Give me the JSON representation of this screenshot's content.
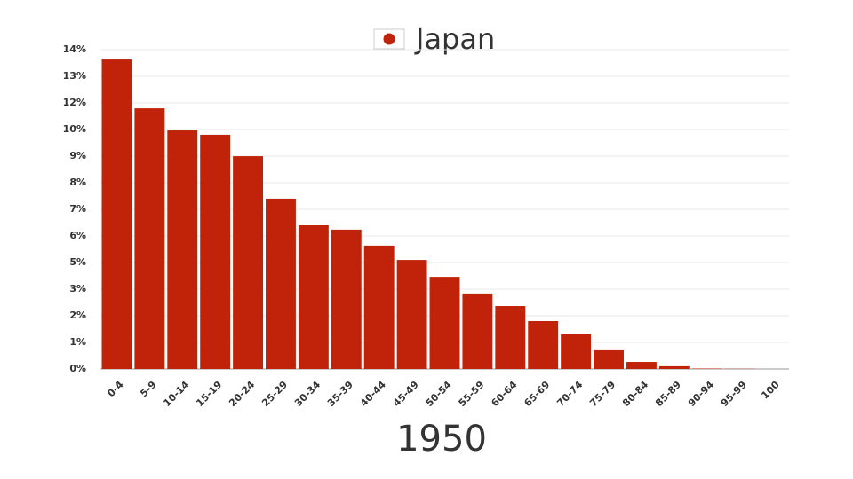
{
  "chart_data": {
    "type": "bar",
    "title": "Japan",
    "subtitle": "1950",
    "categories": [
      "0-4",
      "5-9",
      "10-14",
      "15-19",
      "20-24",
      "25-29",
      "30-34",
      "35-39",
      "40-44",
      "45-49",
      "50-54",
      "55-59",
      "60-64",
      "65-69",
      "70-74",
      "75-79",
      "80-84",
      "85-89",
      "90-94",
      "95-99",
      "100"
    ],
    "values": [
      13.57,
      11.43,
      10.46,
      10.27,
      9.33,
      7.47,
      6.3,
      6.11,
      5.41,
      4.78,
      4.04,
      3.31,
      2.76,
      2.1,
      1.52,
      0.82,
      0.31,
      0.12,
      0.02,
      0.01,
      0
    ],
    "color": "#c1230a",
    "ylim": [
      0,
      14
    ],
    "yticks": [
      {
        "value": 0,
        "label": "0%"
      },
      {
        "value": 1.1667,
        "label": "1%"
      },
      {
        "value": 2.3333,
        "label": "2%"
      },
      {
        "value": 3.5,
        "label": "3%"
      },
      {
        "value": 4.6667,
        "label": "5%"
      },
      {
        "value": 5.8333,
        "label": "6%"
      },
      {
        "value": 7,
        "label": "7%"
      },
      {
        "value": 8.1667,
        "label": "8%"
      },
      {
        "value": 9.3333,
        "label": "9%"
      },
      {
        "value": 10.5,
        "label": "10%"
      },
      {
        "value": 11.6667,
        "label": "12%"
      },
      {
        "value": 12.8333,
        "label": "13%"
      },
      {
        "value": 14,
        "label": "14%"
      }
    ],
    "grid": true
  }
}
